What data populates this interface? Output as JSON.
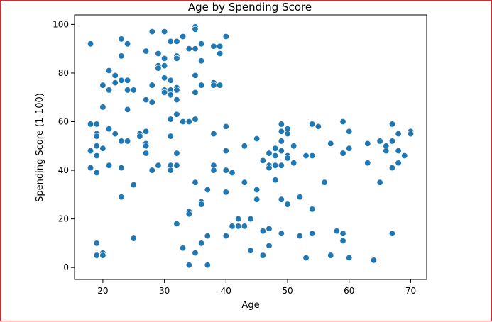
{
  "chart_data": {
    "type": "scatter",
    "title": "Age by Spending Score",
    "xlabel": "Age",
    "ylabel": "Spending Score (1-100)",
    "xlim": [
      15.4,
      72.6
    ],
    "ylim": [
      -4.9,
      103.9
    ],
    "xticks": [
      "20",
      "30",
      "40",
      "50",
      "60",
      "70"
    ],
    "yticks": [
      "0",
      "20",
      "40",
      "60",
      "80",
      "100"
    ],
    "grid": false,
    "point_color": "#1f77b4",
    "points": [
      [
        18,
        92
      ],
      [
        18,
        59
      ],
      [
        18,
        48
      ],
      [
        18,
        41
      ],
      [
        19,
        59
      ],
      [
        19,
        55
      ],
      [
        19,
        54
      ],
      [
        19,
        50
      ],
      [
        19,
        46
      ],
      [
        19,
        39
      ],
      [
        19,
        10
      ],
      [
        19,
        5
      ],
      [
        20,
        75
      ],
      [
        20,
        66
      ],
      [
        20,
        49
      ],
      [
        20,
        6
      ],
      [
        20,
        5
      ],
      [
        21,
        81
      ],
      [
        21,
        73
      ],
      [
        21,
        57
      ],
      [
        21,
        42
      ],
      [
        22,
        79
      ],
      [
        22,
        76
      ],
      [
        22,
        55
      ],
      [
        23,
        94
      ],
      [
        23,
        87
      ],
      [
        23,
        77
      ],
      [
        23,
        52
      ],
      [
        23,
        41
      ],
      [
        23,
        29
      ],
      [
        24,
        92
      ],
      [
        24,
        77
      ],
      [
        24,
        73
      ],
      [
        24,
        65
      ],
      [
        24,
        52
      ],
      [
        25,
        73
      ],
      [
        25,
        34
      ],
      [
        25,
        12
      ],
      [
        26,
        55
      ],
      [
        26,
        54
      ],
      [
        27,
        89
      ],
      [
        27,
        69
      ],
      [
        27,
        56
      ],
      [
        27,
        51
      ],
      [
        27,
        50
      ],
      [
        27,
        47
      ],
      [
        28,
        97
      ],
      [
        28,
        75
      ],
      [
        28,
        68
      ],
      [
        28,
        40
      ],
      [
        29,
        88
      ],
      [
        29,
        83
      ],
      [
        29,
        82
      ],
      [
        29,
        42
      ],
      [
        30,
        97
      ],
      [
        30,
        86
      ],
      [
        30,
        83
      ],
      [
        30,
        78
      ],
      [
        30,
        73
      ],
      [
        30,
        72
      ],
      [
        31,
        93
      ],
      [
        31,
        77
      ],
      [
        31,
        73
      ],
      [
        31,
        71
      ],
      [
        31,
        61
      ],
      [
        31,
        54
      ],
      [
        31,
        42
      ],
      [
        31,
        40
      ],
      [
        32,
        93
      ],
      [
        32,
        87
      ],
      [
        32,
        86
      ],
      [
        32,
        74
      ],
      [
        32,
        73
      ],
      [
        32,
        69
      ],
      [
        32,
        63
      ],
      [
        32,
        47
      ],
      [
        32,
        42
      ],
      [
        32,
        18
      ],
      [
        33,
        95
      ],
      [
        33,
        60
      ],
      [
        33,
        8
      ],
      [
        34,
        90
      ],
      [
        34,
        60
      ],
      [
        34,
        23
      ],
      [
        34,
        22
      ],
      [
        34,
        1
      ],
      [
        35,
        99
      ],
      [
        35,
        98
      ],
      [
        35,
        90
      ],
      [
        35,
        79
      ],
      [
        35,
        72
      ],
      [
        35,
        61
      ],
      [
        35,
        35
      ],
      [
        35,
        6
      ],
      [
        36,
        92
      ],
      [
        36,
        85
      ],
      [
        36,
        75
      ],
      [
        36,
        27
      ],
      [
        36,
        26
      ],
      [
        36,
        10
      ],
      [
        37,
        32
      ],
      [
        37,
        13
      ],
      [
        37,
        1
      ],
      [
        38,
        91
      ],
      [
        38,
        76
      ],
      [
        38,
        75
      ],
      [
        38,
        55
      ],
      [
        38,
        42
      ],
      [
        38,
        40
      ],
      [
        39,
        91
      ],
      [
        39,
        88
      ],
      [
        39,
        75
      ],
      [
        40,
        95
      ],
      [
        40,
        58
      ],
      [
        40,
        48
      ],
      [
        40,
        40
      ],
      [
        40,
        31
      ],
      [
        40,
        13
      ],
      [
        41,
        39
      ],
      [
        41,
        17
      ],
      [
        42,
        20
      ],
      [
        42,
        17
      ],
      [
        43,
        50
      ],
      [
        43,
        35
      ],
      [
        43,
        17
      ],
      [
        44,
        20
      ],
      [
        44,
        7
      ],
      [
        45,
        53
      ],
      [
        45,
        32
      ],
      [
        45,
        28
      ],
      [
        46,
        44
      ],
      [
        46,
        15
      ],
      [
        46,
        5
      ],
      [
        47,
        47
      ],
      [
        47,
        42
      ],
      [
        47,
        41
      ],
      [
        47,
        16
      ],
      [
        47,
        9
      ],
      [
        48,
        49
      ],
      [
        48,
        46
      ],
      [
        48,
        42
      ],
      [
        48,
        36
      ],
      [
        49,
        59
      ],
      [
        49,
        56
      ],
      [
        49,
        52
      ],
      [
        49,
        48
      ],
      [
        49,
        42
      ],
      [
        49,
        28
      ],
      [
        49,
        14
      ],
      [
        50,
        57
      ],
      [
        50,
        55
      ],
      [
        50,
        46
      ],
      [
        50,
        45
      ],
      [
        50,
        26
      ],
      [
        51,
        50
      ],
      [
        51,
        43
      ],
      [
        52,
        29
      ],
      [
        52,
        13
      ],
      [
        53,
        46
      ],
      [
        53,
        4
      ],
      [
        54,
        59
      ],
      [
        54,
        46
      ],
      [
        54,
        24
      ],
      [
        54,
        14
      ],
      [
        55,
        58
      ],
      [
        56,
        35
      ],
      [
        57,
        51
      ],
      [
        57,
        5
      ],
      [
        58,
        15
      ],
      [
        59,
        60
      ],
      [
        59,
        47
      ],
      [
        59,
        14
      ],
      [
        59,
        11
      ],
      [
        60,
        56
      ],
      [
        60,
        49
      ],
      [
        60,
        4
      ],
      [
        63,
        51
      ],
      [
        63,
        43
      ],
      [
        64,
        3
      ],
      [
        65,
        52
      ],
      [
        65,
        35
      ],
      [
        66,
        50
      ],
      [
        66,
        48
      ],
      [
        67,
        59
      ],
      [
        67,
        52
      ],
      [
        67,
        41
      ],
      [
        67,
        14
      ],
      [
        68,
        55
      ],
      [
        68,
        48
      ],
      [
        68,
        43
      ],
      [
        69,
        46
      ],
      [
        70,
        56
      ],
      [
        70,
        55
      ]
    ]
  }
}
